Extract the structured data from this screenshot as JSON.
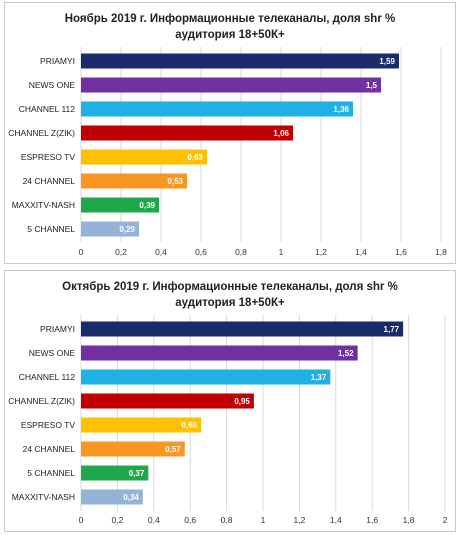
{
  "chart_data": [
    {
      "type": "bar",
      "orientation": "horizontal",
      "title_line1": "Ноябрь 2019 г. Информационные телеканалы, доля shr %",
      "title_line2": "аудитория 18+50К+",
      "categories": [
        "PRIAMYI",
        "NEWS ONE",
        "CHANNEL  112",
        "CHANNEL Z(ZIK)",
        "ESPRESO TV",
        "24 CHANNEL",
        "MAXXITV-NASH",
        "5 CHANNEL"
      ],
      "values": [
        1.59,
        1.5,
        1.36,
        1.06,
        0.63,
        0.53,
        0.39,
        0.29
      ],
      "value_labels": [
        "1,59",
        "1,5",
        "1,36",
        "1,06",
        "0,63",
        "0,53",
        "0,39",
        "0,29"
      ],
      "colors": [
        "#1b2a6b",
        "#7030a0",
        "#1fb0e8",
        "#c00000",
        "#ffc000",
        "#f79621",
        "#1ea84a",
        "#95b3d7"
      ],
      "xlim": [
        0,
        1.8
      ],
      "ticks": [
        0,
        0.2,
        0.4,
        0.6,
        0.8,
        1,
        1.2,
        1.4,
        1.6,
        1.8
      ],
      "tick_labels": [
        "0",
        "0,2",
        "0,4",
        "0,6",
        "0,8",
        "1",
        "1,2",
        "1,4",
        "1,6",
        "1,8"
      ],
      "grid": true
    },
    {
      "type": "bar",
      "orientation": "horizontal",
      "title_line1": "Октябрь 2019 г. Информационные телеканалы, доля shr %",
      "title_line2": "аудитория 18+50К+",
      "categories": [
        "PRIAMYI",
        "NEWS ONE",
        "CHANNEL  112",
        "CHANNEL Z(ZIK)",
        "ESPRESO TV",
        "24 CHANNEL",
        "5 CHANNEL",
        "MAXXITV-NASH"
      ],
      "values": [
        1.77,
        1.52,
        1.37,
        0.95,
        0.66,
        0.57,
        0.37,
        0.34
      ],
      "value_labels": [
        "1,77",
        "1,52",
        "1,37",
        "0,95",
        "0,66",
        "0,57",
        "0,37",
        "0,34"
      ],
      "colors": [
        "#1b2a6b",
        "#7030a0",
        "#1fb0e8",
        "#c00000",
        "#ffc000",
        "#f79621",
        "#1ea84a",
        "#95b3d7"
      ],
      "xlim": [
        0,
        2
      ],
      "ticks": [
        0,
        0.2,
        0.4,
        0.6,
        0.8,
        1,
        1.2,
        1.4,
        1.6,
        1.8,
        2
      ],
      "tick_labels": [
        "0",
        "0,2",
        "0,4",
        "0,6",
        "0,8",
        "1",
        "1,2",
        "1,4",
        "1,6",
        "1,8",
        "2"
      ],
      "grid": true
    }
  ]
}
